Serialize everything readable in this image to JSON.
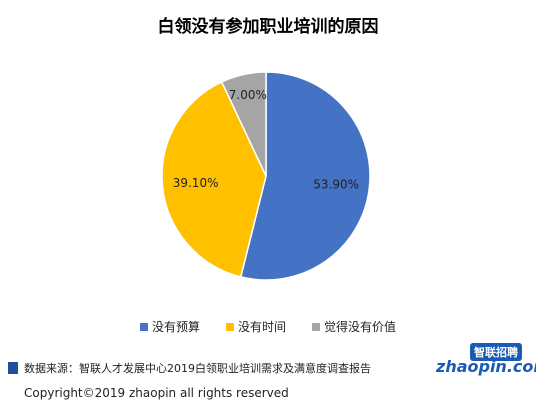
{
  "chart_data": {
    "type": "pie",
    "title": "白领没有参加职业培训的原因",
    "categories": [
      "没有预算",
      "没有时间",
      "觉得没有价值"
    ],
    "values": [
      53.9,
      39.1,
      7.0
    ],
    "labels": [
      "53.90%",
      "39.10%",
      "7.00%"
    ],
    "colors": [
      "#4472c4",
      "#ffc000",
      "#a5a5a5"
    ],
    "legend_position": "bottom"
  },
  "source_text": "数据来源：智联人才发展中心2019白领职业培训需求及满意度调查报告",
  "logo": {
    "cn": "智联招聘",
    "en": "zhaopin.com"
  },
  "copyright": "Copyright©2019 zhaopin all rights reserved"
}
